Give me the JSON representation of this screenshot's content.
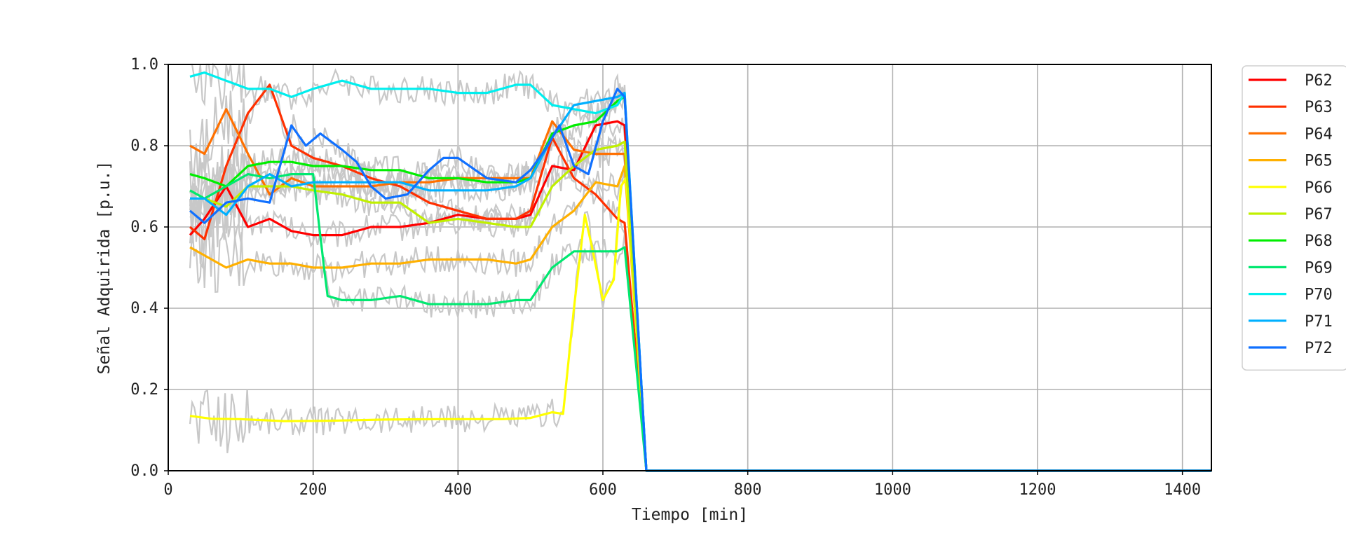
{
  "chart_data": {
    "type": "line",
    "title": "",
    "xlabel": "Tiempo [min]",
    "ylabel": "Señal Adquirida [p.u.]",
    "xlim": [
      0,
      1440
    ],
    "ylim": [
      0,
      1.0
    ],
    "xticks": [
      "0",
      "200",
      "400",
      "600",
      "800",
      "1000",
      "1200",
      "1400"
    ],
    "yticks": [
      "0.0",
      "0.2",
      "0.4",
      "0.6",
      "0.8",
      "1.0"
    ],
    "grid": true,
    "legend_position": "outside-right-top",
    "raw_signal_color": "#c8c8c8",
    "series": [
      {
        "name": "P62",
        "color": "#ff0000",
        "x": [
          30,
          50,
          80,
          110,
          140,
          170,
          200,
          240,
          280,
          320,
          360,
          400,
          440,
          480,
          500,
          530,
          560,
          590,
          620,
          630,
          660,
          1440
        ],
        "y": [
          0.58,
          0.62,
          0.7,
          0.6,
          0.62,
          0.59,
          0.58,
          0.58,
          0.6,
          0.6,
          0.61,
          0.63,
          0.62,
          0.62,
          0.63,
          0.75,
          0.74,
          0.85,
          0.86,
          0.85,
          0.0,
          0.0
        ]
      },
      {
        "name": "P63",
        "color": "#ff3000",
        "x": [
          30,
          50,
          80,
          110,
          140,
          170,
          200,
          240,
          280,
          320,
          360,
          400,
          440,
          480,
          500,
          530,
          560,
          590,
          620,
          630,
          660,
          1440
        ],
        "y": [
          0.6,
          0.57,
          0.75,
          0.88,
          0.95,
          0.8,
          0.77,
          0.75,
          0.72,
          0.7,
          0.66,
          0.64,
          0.62,
          0.62,
          0.64,
          0.82,
          0.72,
          0.68,
          0.62,
          0.61,
          0.0,
          0.0
        ]
      },
      {
        "name": "P64",
        "color": "#ff7000",
        "x": [
          30,
          50,
          80,
          110,
          140,
          170,
          200,
          240,
          280,
          320,
          360,
          400,
          440,
          480,
          500,
          530,
          560,
          590,
          620,
          630,
          660,
          1440
        ],
        "y": [
          0.8,
          0.78,
          0.89,
          0.78,
          0.68,
          0.72,
          0.7,
          0.7,
          0.7,
          0.71,
          0.71,
          0.72,
          0.72,
          0.72,
          0.72,
          0.86,
          0.79,
          0.78,
          0.78,
          0.78,
          0.0,
          0.0
        ]
      },
      {
        "name": "P65",
        "color": "#ffb000",
        "x": [
          30,
          50,
          80,
          110,
          140,
          170,
          200,
          240,
          280,
          320,
          360,
          400,
          440,
          480,
          500,
          530,
          560,
          590,
          620,
          630,
          660,
          1440
        ],
        "y": [
          0.55,
          0.53,
          0.5,
          0.52,
          0.51,
          0.51,
          0.5,
          0.5,
          0.51,
          0.51,
          0.52,
          0.52,
          0.52,
          0.51,
          0.52,
          0.6,
          0.64,
          0.71,
          0.7,
          0.75,
          0.0,
          0.0
        ]
      },
      {
        "name": "P66",
        "color": "#ffff00",
        "x": [
          30,
          60,
          100,
          160,
          220,
          300,
          380,
          460,
          500,
          530,
          545,
          560,
          575,
          585,
          600,
          615,
          625,
          632,
          660,
          1440
        ],
        "y": [
          0.135,
          0.128,
          0.127,
          0.122,
          0.123,
          0.126,
          0.127,
          0.127,
          0.13,
          0.144,
          0.14,
          0.4,
          0.63,
          0.55,
          0.42,
          0.47,
          0.7,
          0.72,
          0.0,
          0.0
        ]
      },
      {
        "name": "P67",
        "color": "#c0f000",
        "x": [
          30,
          50,
          80,
          110,
          140,
          170,
          200,
          240,
          280,
          320,
          360,
          400,
          440,
          480,
          500,
          530,
          560,
          590,
          620,
          630,
          660,
          1440
        ],
        "y": [
          0.69,
          0.67,
          0.65,
          0.7,
          0.7,
          0.7,
          0.69,
          0.68,
          0.66,
          0.66,
          0.61,
          0.62,
          0.61,
          0.6,
          0.6,
          0.7,
          0.75,
          0.79,
          0.8,
          0.81,
          0.0,
          0.0
        ]
      },
      {
        "name": "P68",
        "color": "#00ee00",
        "x": [
          30,
          50,
          80,
          110,
          140,
          170,
          200,
          240,
          280,
          320,
          360,
          400,
          440,
          480,
          500,
          530,
          560,
          590,
          620,
          630,
          660,
          1440
        ],
        "y": [
          0.73,
          0.72,
          0.7,
          0.75,
          0.76,
          0.76,
          0.75,
          0.75,
          0.74,
          0.74,
          0.72,
          0.72,
          0.71,
          0.71,
          0.72,
          0.83,
          0.85,
          0.86,
          0.91,
          0.92,
          0.0,
          0.0
        ]
      },
      {
        "name": "P69",
        "color": "#00e870",
        "x": [
          30,
          50,
          80,
          110,
          140,
          170,
          200,
          215,
          220,
          240,
          280,
          320,
          360,
          400,
          440,
          480,
          500,
          530,
          560,
          590,
          620,
          630,
          660,
          1440
        ],
        "y": [
          0.69,
          0.67,
          0.7,
          0.73,
          0.72,
          0.73,
          0.73,
          0.5,
          0.43,
          0.42,
          0.42,
          0.43,
          0.41,
          0.41,
          0.41,
          0.42,
          0.42,
          0.5,
          0.54,
          0.54,
          0.54,
          0.55,
          0.0,
          0.0
        ]
      },
      {
        "name": "P70",
        "color": "#00eeee",
        "x": [
          30,
          50,
          80,
          110,
          140,
          170,
          200,
          240,
          280,
          320,
          360,
          400,
          440,
          480,
          500,
          530,
          560,
          590,
          620,
          630,
          660,
          1440
        ],
        "y": [
          0.97,
          0.98,
          0.96,
          0.94,
          0.94,
          0.92,
          0.94,
          0.96,
          0.94,
          0.94,
          0.94,
          0.93,
          0.93,
          0.95,
          0.95,
          0.9,
          0.89,
          0.88,
          0.9,
          0.93,
          0.0,
          0.0
        ]
      },
      {
        "name": "P71",
        "color": "#00b0ff",
        "x": [
          30,
          50,
          80,
          110,
          140,
          170,
          200,
          240,
          280,
          320,
          360,
          400,
          440,
          480,
          500,
          530,
          560,
          590,
          620,
          630,
          660,
          1440
        ],
        "y": [
          0.67,
          0.67,
          0.63,
          0.7,
          0.73,
          0.7,
          0.71,
          0.71,
          0.71,
          0.71,
          0.69,
          0.69,
          0.69,
          0.7,
          0.72,
          0.82,
          0.9,
          0.91,
          0.92,
          0.93,
          0.0,
          0.0
        ]
      },
      {
        "name": "P72",
        "color": "#1070ff",
        "x": [
          30,
          50,
          80,
          110,
          140,
          170,
          190,
          210,
          240,
          260,
          280,
          300,
          330,
          360,
          380,
          400,
          440,
          480,
          500,
          520,
          540,
          560,
          580,
          600,
          620,
          630,
          660,
          1440
        ],
        "y": [
          0.64,
          0.61,
          0.66,
          0.67,
          0.66,
          0.85,
          0.8,
          0.83,
          0.79,
          0.76,
          0.7,
          0.67,
          0.68,
          0.74,
          0.77,
          0.77,
          0.72,
          0.71,
          0.74,
          0.79,
          0.85,
          0.75,
          0.73,
          0.86,
          0.94,
          0.92,
          0.0,
          0.0
        ]
      }
    ]
  }
}
